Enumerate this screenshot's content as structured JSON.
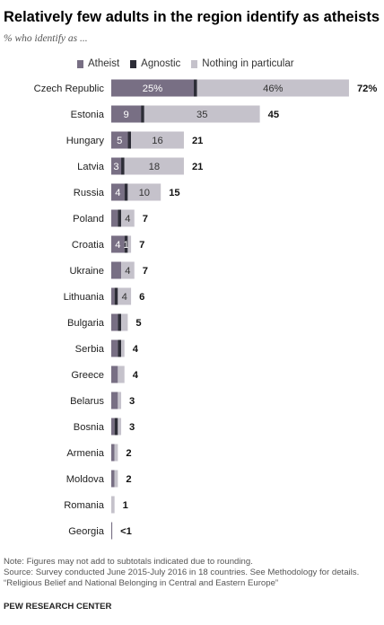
{
  "title": "Relatively few adults in the region identify as atheists",
  "subtitle": "% who identify as ...",
  "legend": {
    "atheist": "Atheist",
    "agnostic": "Agnostic",
    "nothing": "Nothing in particular"
  },
  "colors": {
    "atheist": "#786f84",
    "agnostic": "#2d2d37",
    "nothing": "#c5c2cb"
  },
  "notes": {
    "line1": "Note: Figures may not add to subtotals indicated due to rounding.",
    "line2": "Source: Survey conducted June 2015-July 2016 in 18 countries. See Methodology for details.",
    "line3": "“Religious Belief and National Belonging in Central and Eastern Europe”"
  },
  "footer": "PEW RESEARCH CENTER",
  "chart_data": {
    "type": "bar",
    "orientation": "horizontal",
    "stacked": true,
    "categories": [
      "Czech Republic",
      "Estonia",
      "Hungary",
      "Latvia",
      "Russia",
      "Poland",
      "Croatia",
      "Ukraine",
      "Lithuania",
      "Bulgaria",
      "Serbia",
      "Greece",
      "Belarus",
      "Bosnia",
      "Armenia",
      "Moldova",
      "Romania",
      "Georgia"
    ],
    "series": [
      {
        "name": "Atheist",
        "values": [
          25,
          9,
          5,
          3,
          4,
          2,
          4,
          3,
          1,
          2,
          2,
          2,
          2,
          1,
          1,
          1,
          0,
          0.3
        ],
        "labels": [
          "25%",
          "9",
          "5",
          "3",
          "4",
          "",
          "4",
          "",
          "",
          "",
          "",
          "",
          "",
          "",
          "",
          "",
          "",
          ""
        ]
      },
      {
        "name": "Agnostic",
        "values": [
          1,
          1,
          1,
          1,
          1,
          1,
          1,
          0,
          1,
          1,
          1,
          0,
          0,
          1,
          0,
          0,
          0,
          0
        ],
        "labels": [
          "",
          "",
          "",
          "",
          "",
          "",
          "1",
          "",
          "",
          "",
          "",
          "",
          "",
          "",
          "",
          "",
          "",
          ""
        ]
      },
      {
        "name": "Nothing in particular",
        "values": [
          46,
          35,
          16,
          18,
          10,
          4,
          1,
          4,
          4,
          2,
          1,
          2,
          1,
          1,
          1,
          1,
          1,
          0
        ],
        "labels": [
          "46%",
          "35",
          "16",
          "18",
          "10",
          "4",
          "",
          "4",
          "4",
          "",
          "",
          "",
          "",
          "",
          "",
          "",
          "",
          ""
        ]
      }
    ],
    "totals": [
      "72%",
      "45",
      "21",
      "21",
      "15",
      "7",
      "7",
      "7",
      "6",
      "5",
      "4",
      "4",
      "3",
      "3",
      "2",
      "2",
      "1",
      "<1"
    ]
  }
}
